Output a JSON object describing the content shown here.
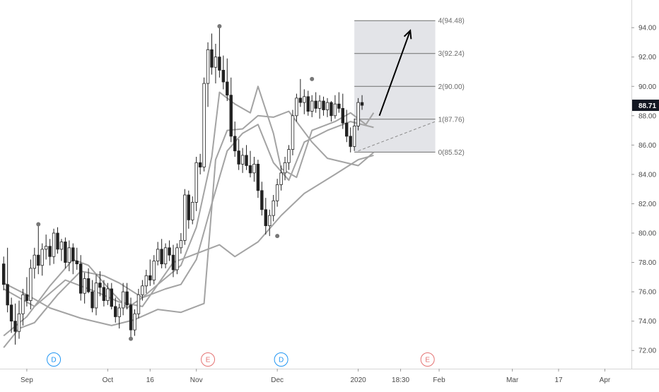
{
  "chart_data": {
    "type": "candlestick",
    "title": "",
    "price_axis": {
      "ticks": [
        {
          "value": 72,
          "label": "72.00"
        },
        {
          "value": 74,
          "label": "74.00"
        },
        {
          "value": 76,
          "label": "76.00"
        },
        {
          "value": 78,
          "label": "78.00"
        },
        {
          "value": 80,
          "label": "80.00"
        },
        {
          "value": 82,
          "label": "82.00"
        },
        {
          "value": 84,
          "label": "84.00"
        },
        {
          "value": 86,
          "label": "86.00"
        },
        {
          "value": 88,
          "label": "88.00"
        },
        {
          "value": 90,
          "label": "90.00"
        },
        {
          "value": 92,
          "label": "92.00"
        },
        {
          "value": 94,
          "label": "94.00"
        }
      ],
      "range": [
        71.0,
        95.5
      ],
      "last_price": {
        "value": 88.71,
        "label": "88.71"
      }
    },
    "time_axis": {
      "bars_total": 140,
      "labels": [
        {
          "label": "Sep",
          "bar": 6
        },
        {
          "label": "Oct",
          "bar": 27
        },
        {
          "label": "16",
          "bar": 38
        },
        {
          "label": "Nov",
          "bar": 50
        },
        {
          "label": "Dec",
          "bar": 71
        },
        {
          "label": "2020",
          "bar": 92
        },
        {
          "label": "18:30",
          "bar": 103
        },
        {
          "label": "Feb",
          "bar": 113
        },
        {
          "label": "Mar",
          "bar": 132
        },
        {
          "label": "17",
          "bar": 144
        },
        {
          "label": "Apr",
          "bar": 156
        }
      ]
    },
    "events": [
      {
        "type": "D",
        "bar": 13,
        "color": "#2196f3"
      },
      {
        "type": "E",
        "bar": 53,
        "color": "#e57373"
      },
      {
        "type": "D",
        "bar": 72,
        "color": "#2196f3"
      },
      {
        "type": "E",
        "bar": 110,
        "color": "#e57373"
      }
    ],
    "fib_extension": {
      "bar_start": 91,
      "bar_end": 112,
      "levels": [
        {
          "ratio": 0,
          "price": 85.52,
          "label": "0(85.52)"
        },
        {
          "ratio": 1,
          "price": 87.76,
          "label": "1(87.76)"
        },
        {
          "ratio": 2,
          "price": 90.0,
          "label": "2(90.00)"
        },
        {
          "ratio": 3,
          "price": 92.24,
          "label": "3(92.24)"
        },
        {
          "ratio": 4,
          "price": 94.48,
          "label": "4(94.48)"
        }
      ]
    },
    "pivots": [
      {
        "bar": 9,
        "price": 80.6
      },
      {
        "bar": 33,
        "price": 72.8
      },
      {
        "bar": 56,
        "price": 94.1
      },
      {
        "bar": 71,
        "price": 79.8
      },
      {
        "bar": 80,
        "price": 90.5
      }
    ],
    "arrow": {
      "from": {
        "bar": 97.5,
        "price": 88.0
      },
      "to": {
        "bar": 105.5,
        "price": 93.8
      }
    },
    "dashed_line": {
      "from": {
        "bar": 92,
        "price": 85.6
      },
      "to": {
        "bar": 112,
        "price": 87.6
      }
    },
    "moving_averages": [
      {
        "points": [
          [
            0,
            76.2
          ],
          [
            8,
            75.0
          ],
          [
            16,
            76.8
          ],
          [
            24,
            76.0
          ],
          [
            30,
            75.3
          ],
          [
            36,
            75.0
          ],
          [
            44,
            78.0
          ],
          [
            50,
            78.6
          ],
          [
            56,
            79.2
          ],
          [
            60,
            78.4
          ],
          [
            66,
            79.4
          ],
          [
            72,
            81.2
          ],
          [
            78,
            82.7
          ],
          [
            86,
            84.0
          ],
          [
            92,
            85.0
          ],
          [
            96,
            85.3
          ]
        ]
      },
      {
        "points": [
          [
            0,
            76.6
          ],
          [
            6,
            75.8
          ],
          [
            12,
            74.9
          ],
          [
            20,
            74.2
          ],
          [
            28,
            73.7
          ],
          [
            34,
            74.1
          ],
          [
            40,
            74.8
          ],
          [
            46,
            74.6
          ],
          [
            52,
            75.2
          ],
          [
            55,
            85.0
          ],
          [
            58,
            87.0
          ],
          [
            62,
            87.1
          ],
          [
            66,
            88.0
          ],
          [
            70,
            87.9
          ],
          [
            74,
            88.3
          ],
          [
            80,
            86.2
          ],
          [
            84,
            85.1
          ],
          [
            92,
            84.6
          ],
          [
            96,
            85.5
          ]
        ]
      },
      {
        "points": [
          [
            0,
            72.2
          ],
          [
            4,
            73.5
          ],
          [
            8,
            73.9
          ],
          [
            14,
            75.8
          ],
          [
            20,
            77.4
          ],
          [
            26,
            77.1
          ],
          [
            30,
            76.6
          ],
          [
            36,
            75.6
          ],
          [
            42,
            76.2
          ],
          [
            46,
            76.5
          ],
          [
            50,
            78.2
          ],
          [
            54,
            82.0
          ],
          [
            58,
            85.6
          ],
          [
            62,
            86.8
          ],
          [
            66,
            87.4
          ],
          [
            70,
            84.8
          ],
          [
            74,
            83.6
          ],
          [
            78,
            86.2
          ],
          [
            84,
            87.0
          ],
          [
            90,
            87.6
          ],
          [
            96,
            87.2
          ]
        ]
      },
      {
        "points": [
          [
            0,
            73.0
          ],
          [
            6,
            74.3
          ],
          [
            12,
            76.4
          ],
          [
            18,
            78.2
          ],
          [
            22,
            77.8
          ],
          [
            28,
            76.0
          ],
          [
            32,
            74.9
          ],
          [
            36,
            75.6
          ],
          [
            40,
            76.5
          ],
          [
            46,
            77.8
          ],
          [
            50,
            80.4
          ],
          [
            54,
            85.2
          ],
          [
            56,
            89.6
          ],
          [
            60,
            88.8
          ],
          [
            64,
            88.2
          ],
          [
            66,
            90.0
          ],
          [
            70,
            86.8
          ],
          [
            72,
            84.4
          ],
          [
            76,
            83.8
          ],
          [
            80,
            87.0
          ],
          [
            86,
            87.6
          ],
          [
            90,
            88.2
          ],
          [
            94,
            87.4
          ],
          [
            96,
            88.2
          ]
        ]
      }
    ],
    "candles": [
      [
        77.9,
        78.4,
        76.1,
        76.5
      ],
      [
        76.5,
        79.0,
        74.6,
        75.1
      ],
      [
        75.1,
        75.6,
        73.2,
        74.0
      ],
      [
        74.0,
        75.2,
        72.4,
        73.3
      ],
      [
        73.3,
        75.4,
        72.8,
        74.5
      ],
      [
        74.5,
        76.2,
        73.7,
        75.8
      ],
      [
        75.8,
        77.0,
        75.0,
        75.4
      ],
      [
        75.4,
        78.2,
        74.8,
        77.6
      ],
      [
        77.6,
        79.0,
        76.9,
        78.5
      ],
      [
        78.5,
        80.6,
        77.2,
        77.8
      ],
      [
        77.8,
        79.3,
        77.1,
        78.9
      ],
      [
        78.9,
        79.9,
        78.2,
        79.1
      ],
      [
        79.1,
        79.6,
        77.8,
        78.4
      ],
      [
        78.4,
        80.3,
        77.9,
        80.0
      ],
      [
        80.0,
        80.4,
        78.6,
        78.9
      ],
      [
        78.9,
        79.6,
        78.1,
        79.4
      ],
      [
        79.4,
        79.7,
        77.6,
        78.0
      ],
      [
        78.0,
        79.5,
        77.4,
        79.0
      ],
      [
        79.0,
        79.3,
        77.2,
        78.1
      ],
      [
        78.1,
        79.0,
        77.5,
        77.9
      ],
      [
        77.9,
        78.5,
        75.4,
        75.9
      ],
      [
        75.9,
        77.3,
        75.2,
        76.9
      ],
      [
        76.9,
        77.6,
        75.9,
        76.0
      ],
      [
        76.0,
        76.8,
        74.6,
        74.9
      ],
      [
        74.9,
        77.2,
        74.4,
        76.6
      ],
      [
        76.6,
        77.4,
        75.7,
        76.3
      ],
      [
        76.3,
        76.8,
        75.0,
        75.4
      ],
      [
        75.4,
        76.6,
        75.1,
        76.2
      ],
      [
        76.2,
        76.6,
        74.8,
        75.0
      ],
      [
        75.0,
        75.6,
        73.9,
        74.3
      ],
      [
        74.3,
        75.2,
        73.5,
        74.9
      ],
      [
        74.9,
        76.6,
        74.4,
        76.0
      ],
      [
        76.0,
        76.6,
        74.8,
        75.1
      ],
      [
        75.1,
        75.6,
        72.8,
        73.4
      ],
      [
        73.4,
        74.8,
        73.0,
        74.5
      ],
      [
        74.5,
        76.2,
        74.2,
        75.8
      ],
      [
        75.8,
        76.8,
        75.4,
        76.4
      ],
      [
        76.4,
        77.5,
        75.9,
        77.1
      ],
      [
        77.1,
        78.2,
        76.4,
        76.8
      ],
      [
        76.8,
        78.5,
        76.5,
        78.1
      ],
      [
        78.1,
        79.4,
        77.8,
        78.9
      ],
      [
        78.9,
        79.6,
        77.6,
        77.9
      ],
      [
        77.9,
        79.3,
        77.6,
        79.0
      ],
      [
        79.0,
        79.5,
        78.1,
        78.5
      ],
      [
        78.5,
        79.2,
        77.0,
        77.5
      ],
      [
        77.5,
        79.3,
        77.2,
        79.0
      ],
      [
        79.0,
        80.0,
        78.6,
        79.5
      ],
      [
        79.5,
        83.0,
        79.2,
        82.6
      ],
      [
        82.6,
        82.9,
        80.3,
        80.9
      ],
      [
        80.9,
        82.5,
        80.6,
        82.1
      ],
      [
        82.1,
        85.2,
        81.5,
        84.8
      ],
      [
        84.8,
        85.4,
        84.0,
        84.5
      ],
      [
        84.5,
        90.6,
        84.2,
        90.2
      ],
      [
        90.2,
        93.0,
        88.6,
        92.5
      ],
      [
        92.5,
        93.6,
        90.8,
        91.3
      ],
      [
        91.3,
        92.9,
        90.2,
        92.0
      ],
      [
        92.0,
        94.1,
        90.6,
        91.1
      ],
      [
        91.1,
        92.1,
        89.8,
        90.3
      ],
      [
        90.3,
        91.9,
        89.0,
        89.4
      ],
      [
        89.4,
        90.6,
        86.2,
        86.6
      ],
      [
        86.6,
        87.6,
        85.2,
        85.6
      ],
      [
        85.6,
        86.4,
        84.3,
        84.7
      ],
      [
        84.7,
        85.8,
        84.1,
        85.3
      ],
      [
        85.3,
        86.0,
        84.3,
        84.6
      ],
      [
        84.6,
        85.6,
        83.8,
        84.1
      ],
      [
        84.1,
        85.2,
        83.5,
        84.7
      ],
      [
        84.7,
        85.0,
        82.4,
        82.9
      ],
      [
        82.9,
        83.5,
        81.2,
        81.6
      ],
      [
        81.6,
        82.4,
        79.9,
        80.5
      ],
      [
        80.5,
        81.6,
        79.8,
        81.2
      ],
      [
        81.2,
        82.6,
        80.8,
        82.2
      ],
      [
        82.2,
        83.7,
        81.8,
        83.3
      ],
      [
        83.3,
        84.6,
        82.9,
        84.1
      ],
      [
        84.1,
        85.2,
        83.6,
        84.8
      ],
      [
        84.8,
        86.0,
        84.3,
        85.7
      ],
      [
        85.7,
        88.4,
        85.3,
        88.0
      ],
      [
        88.0,
        89.5,
        87.6,
        89.2
      ],
      [
        89.2,
        90.5,
        88.6,
        88.9
      ],
      [
        88.9,
        89.8,
        88.1,
        89.3
      ],
      [
        89.3,
        89.7,
        88.0,
        88.3
      ],
      [
        88.3,
        89.4,
        87.9,
        89.0
      ],
      [
        89.0,
        89.6,
        88.2,
        88.5
      ],
      [
        88.5,
        89.4,
        87.8,
        89.0
      ],
      [
        89.0,
        89.3,
        88.0,
        88.4
      ],
      [
        88.4,
        89.2,
        87.9,
        88.9
      ],
      [
        88.9,
        89.0,
        87.6,
        88.0
      ],
      [
        88.0,
        89.4,
        87.8,
        88.8
      ],
      [
        88.8,
        89.6,
        88.2,
        88.5
      ],
      [
        88.5,
        89.5,
        87.1,
        87.5
      ],
      [
        87.5,
        88.4,
        86.2,
        86.6
      ],
      [
        86.6,
        87.2,
        85.5,
        85.9
      ],
      [
        85.9,
        87.8,
        85.6,
        87.3
      ],
      [
        87.3,
        89.2,
        87.0,
        88.9
      ],
      [
        88.9,
        89.4,
        88.4,
        88.71
      ]
    ]
  }
}
